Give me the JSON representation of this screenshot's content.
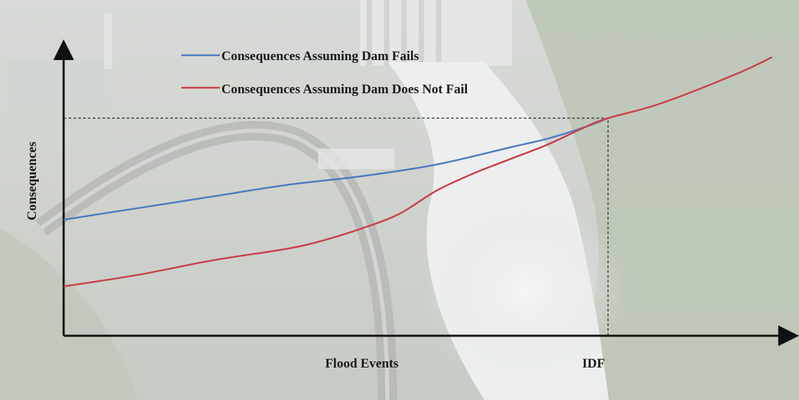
{
  "chart_data": {
    "type": "line",
    "title": "",
    "xlabel": "Flood Events",
    "ylabel": "Consequences",
    "x_tick_labels": [
      "IDF"
    ],
    "x_ticks": [
      {
        "label": "IDF",
        "x": 0.73
      }
    ],
    "xlim": [
      0,
      1
    ],
    "ylim": [
      0,
      1
    ],
    "grid": false,
    "legend_placement": "top-center",
    "reference_lines": [
      {
        "type": "vertical",
        "x": 0.73,
        "from_y": 0,
        "to_y": 0.75,
        "style": "dashed"
      },
      {
        "type": "horizontal",
        "y": 0.75,
        "from_x": 0,
        "to_x": 0.73,
        "style": "dashed"
      }
    ],
    "series": [
      {
        "name": "Consequences Assuming Dam Fails",
        "color": "#4a7cc0",
        "x": [
          0.0,
          0.1,
          0.2,
          0.3,
          0.4,
          0.5,
          0.6,
          0.65,
          0.7,
          0.73
        ],
        "y": [
          0.4,
          0.44,
          0.48,
          0.52,
          0.55,
          0.59,
          0.65,
          0.68,
          0.72,
          0.75
        ]
      },
      {
        "name": "Consequences Assuming Dam Does Not Fail",
        "color": "#c8404a",
        "x": [
          0.0,
          0.1,
          0.2,
          0.3,
          0.35,
          0.4,
          0.45,
          0.5,
          0.55,
          0.6,
          0.65,
          0.7,
          0.73,
          0.8,
          0.9,
          0.95
        ],
        "y": [
          0.17,
          0.21,
          0.26,
          0.3,
          0.33,
          0.37,
          0.42,
          0.5,
          0.56,
          0.61,
          0.66,
          0.72,
          0.75,
          0.8,
          0.9,
          0.96
        ]
      }
    ]
  }
}
